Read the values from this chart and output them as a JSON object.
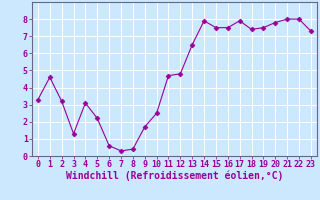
{
  "x": [
    0,
    1,
    2,
    3,
    4,
    5,
    6,
    7,
    8,
    9,
    10,
    11,
    12,
    13,
    14,
    15,
    16,
    17,
    18,
    19,
    20,
    21,
    22,
    23
  ],
  "y": [
    3.3,
    4.6,
    3.2,
    1.3,
    3.1,
    2.2,
    0.6,
    0.3,
    0.4,
    1.7,
    2.5,
    4.7,
    4.8,
    6.5,
    7.9,
    7.5,
    7.5,
    7.9,
    7.4,
    7.5,
    7.8,
    8.0,
    8.0,
    7.3
  ],
  "xlabel": "Windchill (Refroidissement éolien,°C)",
  "ylim": [
    0,
    9
  ],
  "yticks": [
    0,
    1,
    2,
    3,
    4,
    5,
    6,
    7,
    8
  ],
  "xticks": [
    0,
    1,
    2,
    3,
    4,
    5,
    6,
    7,
    8,
    9,
    10,
    11,
    12,
    13,
    14,
    15,
    16,
    17,
    18,
    19,
    20,
    21,
    22,
    23
  ],
  "line_color": "#990099",
  "marker_color": "#990099",
  "bg_color": "#cce8ff",
  "grid_color": "#ffffff",
  "text_color": "#990099",
  "tick_fontsize": 6,
  "xlabel_fontsize": 7,
  "xlim": [
    -0.5,
    23.5
  ]
}
